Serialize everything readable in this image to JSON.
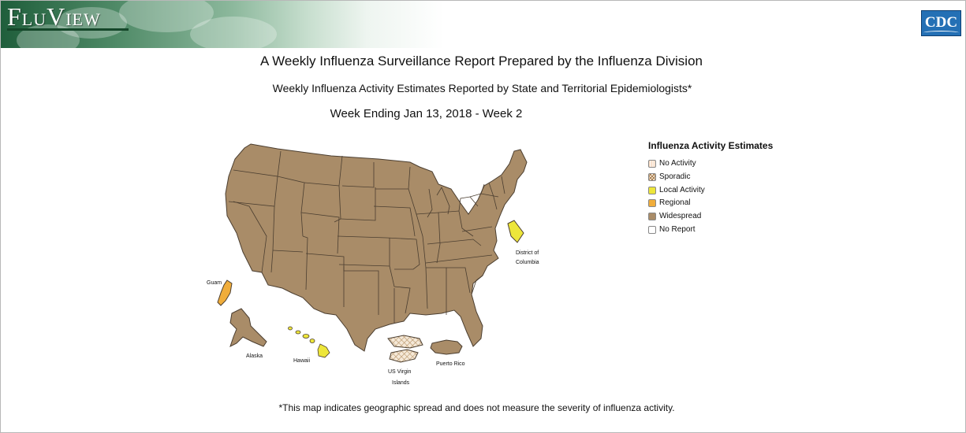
{
  "header": {
    "logo_text": "FluView",
    "agency_logo": "CDC"
  },
  "titles": {
    "main": "A Weekly Influenza Surveillance Report Prepared by the Influenza Division",
    "subtitle": "Weekly Influenza Activity Estimates Reported by State and Territorial Epidemiologists*",
    "week": "Week Ending Jan 13, 2018 - Week 2"
  },
  "colors": {
    "no_activity": "#fbefe4",
    "sporadic": "#e8d4b5",
    "local_activity": "#ede63a",
    "regional": "#f0ad3b",
    "widespread": "#a98c68",
    "no_report": "#ffffff",
    "border": "#4b3e30"
  },
  "legend": {
    "title": "Influenza Activity Estimates",
    "items": [
      {
        "label": "No Activity",
        "color": "#fbefe4"
      },
      {
        "label": "Sporadic",
        "color": "#e8d4b5"
      },
      {
        "label": "Local Activity",
        "color": "#ede63a"
      },
      {
        "label": "Regional",
        "color": "#f0ad3b"
      },
      {
        "label": "Widespread",
        "color": "#a98c68"
      },
      {
        "label": "No Report",
        "color": "#ffffff"
      }
    ]
  },
  "regions": {
    "contiguous_us": "Widespread",
    "alaska": {
      "label": "Alaska",
      "level": "Widespread"
    },
    "hawaii": {
      "label": "Hawaii",
      "level": "Local Activity"
    },
    "guam": {
      "label": "Guam",
      "level": "Regional"
    },
    "district_of_columbia": {
      "label_line1": "District of",
      "label_line2": "Columbia",
      "level": "Local Activity"
    },
    "us_virgin_islands": {
      "label_line1": "US Virgin",
      "label_line2": "Islands",
      "level": "Sporadic"
    },
    "puerto_rico": {
      "label": "Puerto Rico",
      "level": "Widespread"
    }
  },
  "footnote": "*This map indicates geographic spread and does not measure the severity of influenza activity."
}
